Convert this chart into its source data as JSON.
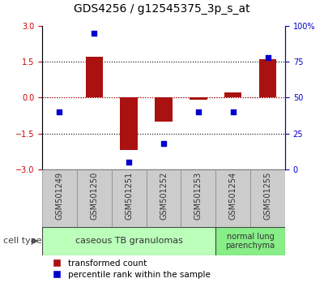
{
  "title": "GDS4256 / g12545375_3p_s_at",
  "samples": [
    "GSM501249",
    "GSM501250",
    "GSM501251",
    "GSM501252",
    "GSM501253",
    "GSM501254",
    "GSM501255"
  ],
  "transformed_count": [
    0.0,
    1.7,
    -2.2,
    -1.0,
    -0.1,
    0.2,
    1.6
  ],
  "percentile_rank": [
    40,
    95,
    5,
    18,
    40,
    40,
    78
  ],
  "ylim_left": [
    -3,
    3
  ],
  "ylim_right": [
    0,
    100
  ],
  "left_yticks": [
    -3,
    -1.5,
    0,
    1.5,
    3
  ],
  "right_yticks": [
    0,
    25,
    50,
    75,
    100
  ],
  "right_yticklabels": [
    "0",
    "25",
    "50",
    "75",
    "100%"
  ],
  "bar_color": "#aa1111",
  "scatter_color": "#0000cc",
  "cell_types": [
    {
      "label": "caseous TB granulomas",
      "n_samples": 5,
      "color": "#bbffbb"
    },
    {
      "label": "normal lung\nparenchyma",
      "n_samples": 2,
      "color": "#88ee88"
    }
  ],
  "cell_type_label": "cell type",
  "legend_bar_label": "transformed count",
  "legend_scatter_label": "percentile rank within the sample",
  "tick_label_color_left": "#cc0000",
  "tick_label_color_right": "#0000cc",
  "background_color": "#ffffff",
  "tick_box_color": "#cccccc",
  "tick_box_edge_color": "#888888",
  "title_fontsize": 10,
  "tick_fontsize": 7,
  "label_fontsize": 8,
  "legend_fontsize": 7.5
}
